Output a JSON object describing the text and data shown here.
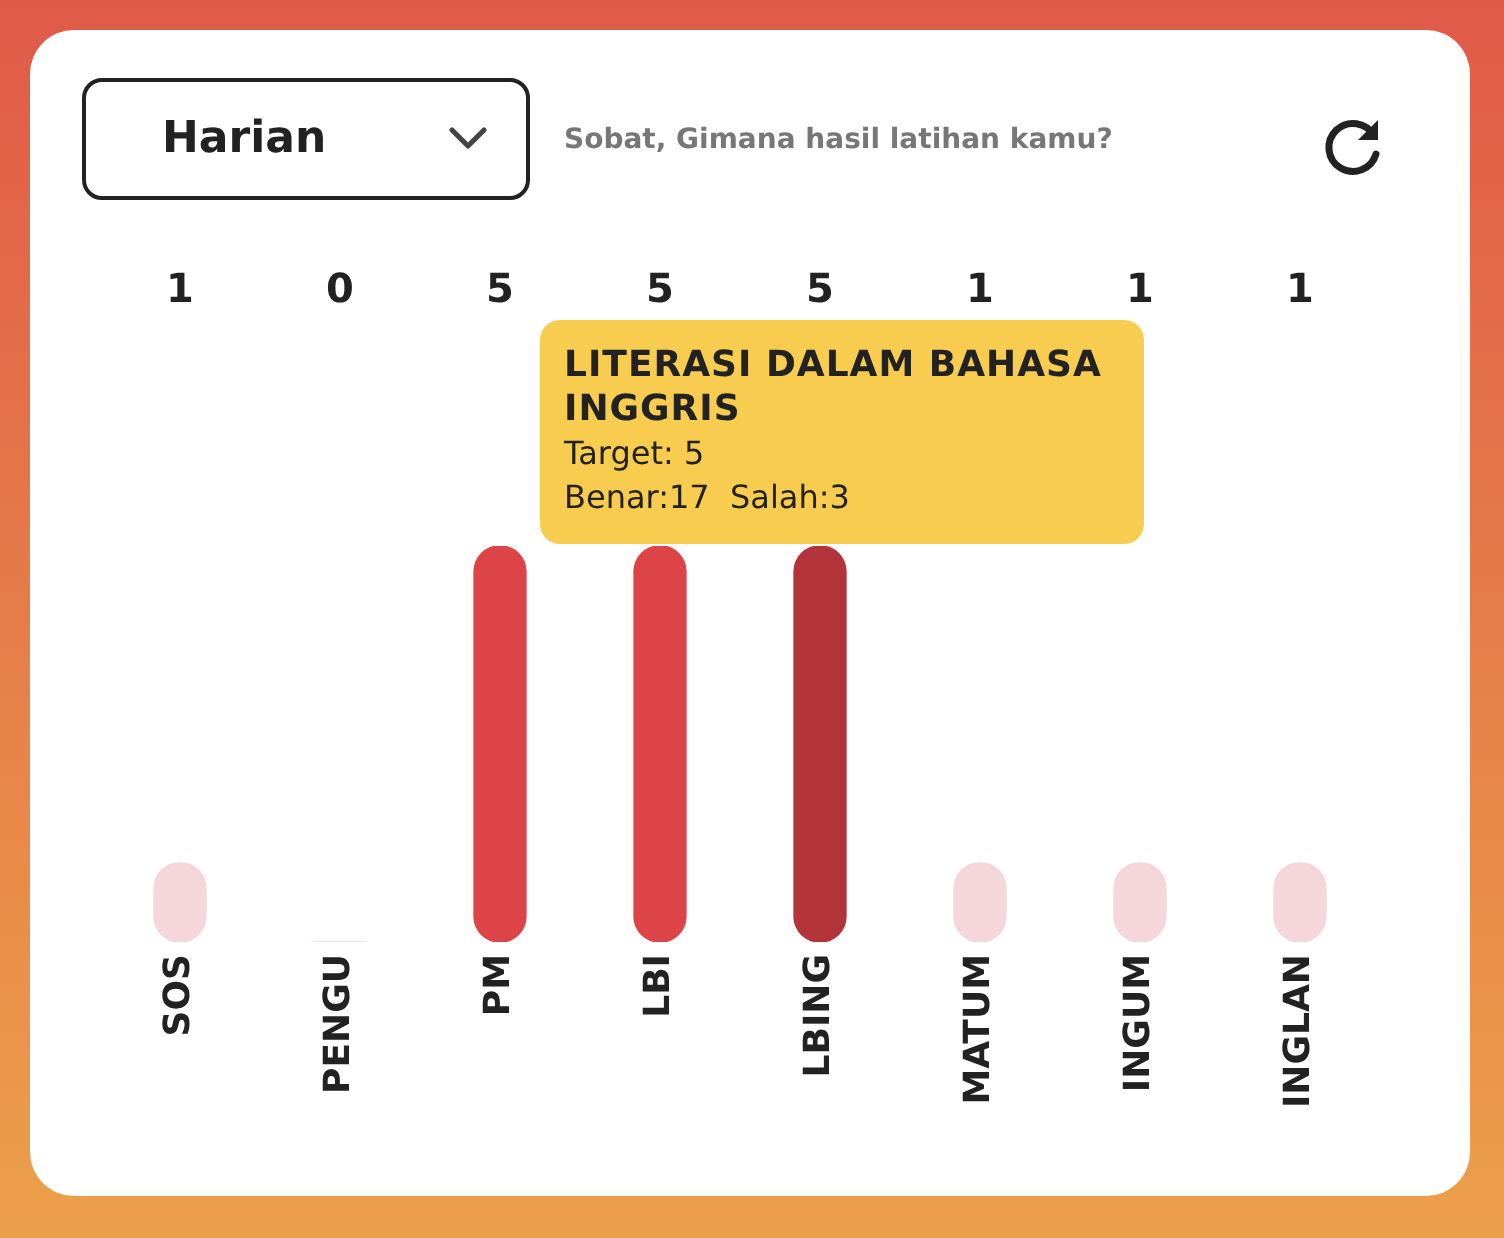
{
  "chart_data": {
    "type": "bar",
    "title": "Sobat, Gimana hasil latihan kamu?",
    "categories": [
      "SOS",
      "PENGU",
      "PM",
      "LBI",
      "LBING",
      "MATUM",
      "INGUM",
      "INGLAN"
    ],
    "values": [
      1,
      0,
      5,
      5,
      5,
      1,
      1,
      1
    ],
    "colors": [
      "#f5d6da",
      "#f5d6da",
      "#dc4448",
      "#dc4448",
      "#b3343a",
      "#f5d6da",
      "#f5d6da",
      "#f5d6da"
    ],
    "ylim": [
      0,
      5
    ],
    "tick_labels": "x",
    "grid": false,
    "legend": false,
    "data_labels": true,
    "annotations": [
      "Harian",
      "LITERASI DALAM BAHASA INGGRIS",
      "Target: 5",
      "Benar:17  Salah:3"
    ]
  }
}
